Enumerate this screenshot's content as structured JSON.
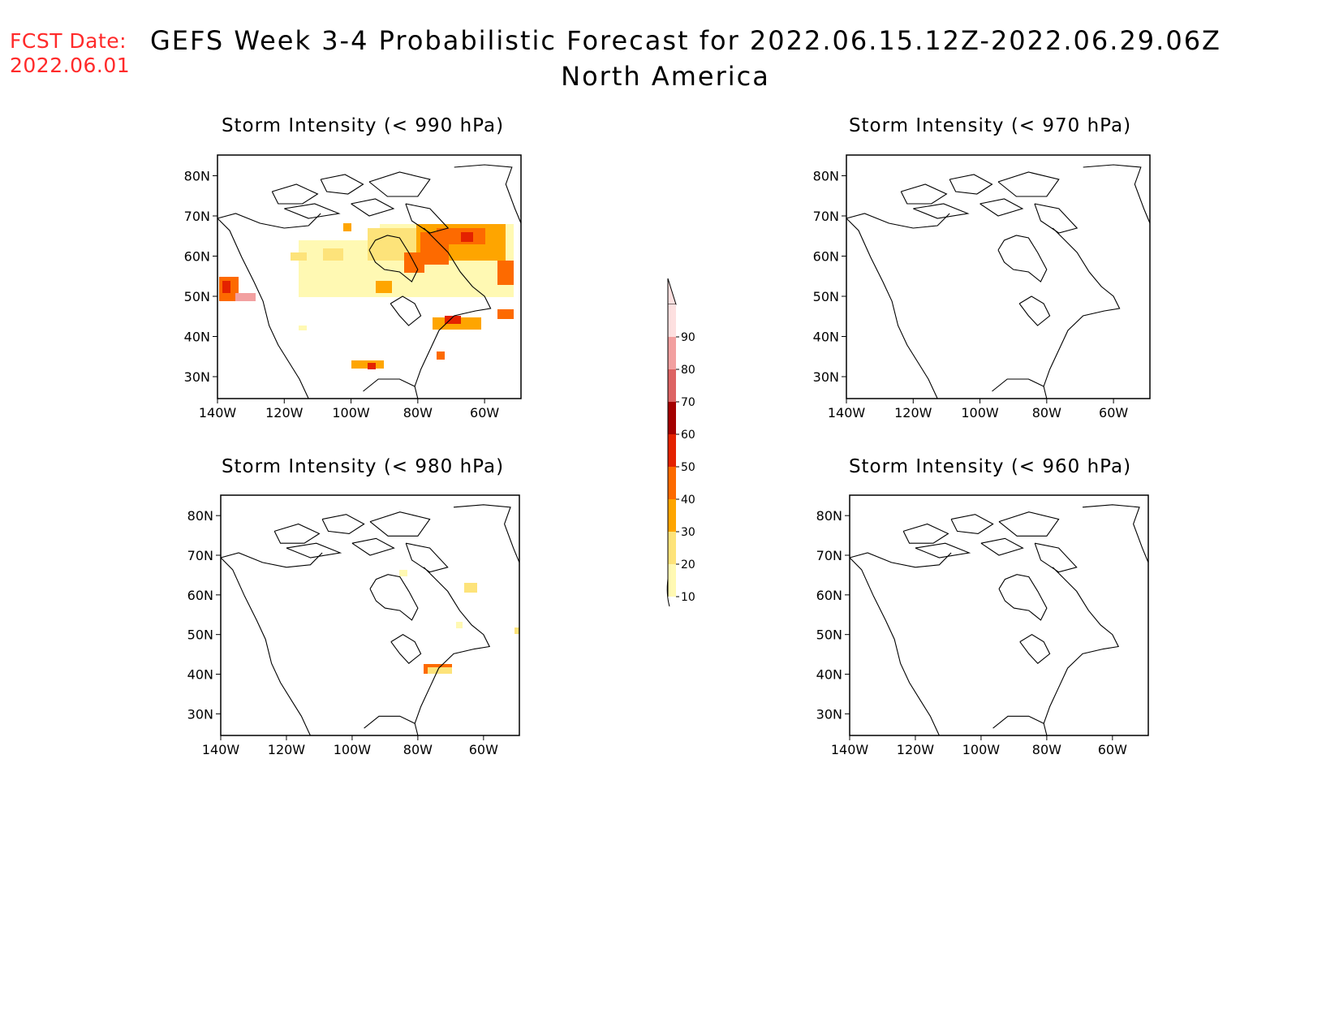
{
  "header": {
    "fcst_label": "FCST Date:",
    "fcst_date": "2022.06.01",
    "title": "GEFS Week 3-4 Probabilistic Forecast for 2022.06.15.12Z-2022.06.29.06Z",
    "subtitle": "North America"
  },
  "axes": {
    "lat_ticks": [
      "80N",
      "70N",
      "60N",
      "50N",
      "40N",
      "30N"
    ],
    "lon_ticks": [
      "140W",
      "120W",
      "100W",
      "80W",
      "60W"
    ]
  },
  "panels": [
    {
      "id": "p990",
      "title": "Storm Intensity (< 990 hPa)"
    },
    {
      "id": "p970",
      "title": "Storm Intensity (< 970 hPa)"
    },
    {
      "id": "p980",
      "title": "Storm Intensity (< 980 hPa)"
    },
    {
      "id": "p960",
      "title": "Storm Intensity (< 960 hPa)"
    }
  ],
  "colorbar": {
    "labels": [
      "10",
      "20",
      "30",
      "40",
      "50",
      "60",
      "70",
      "80",
      "90"
    ],
    "colors": [
      "#fff9b3",
      "#fde37a",
      "#fea500",
      "#fd6a00",
      "#e42200",
      "#a40000",
      "#dd6464",
      "#f2a0a0",
      "#fde0e0"
    ]
  }
}
